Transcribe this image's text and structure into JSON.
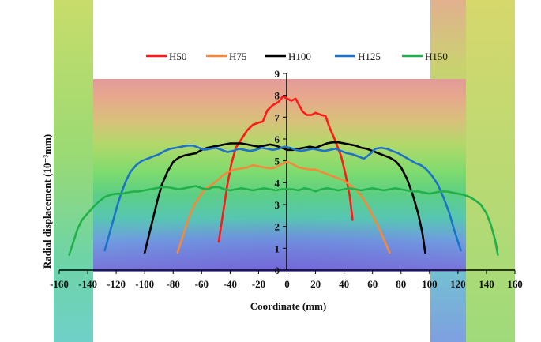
{
  "chart_data": {
    "type": "line",
    "title": "",
    "xlabel": "Coordinate  (mm)",
    "ylabel": "Radial displacement  (10⁻³mm)",
    "xlim": [
      -160,
      160
    ],
    "ylim": [
      0,
      9
    ],
    "x_ticks": [
      -160,
      -140,
      -120,
      -100,
      -80,
      -60,
      -40,
      -20,
      0,
      20,
      40,
      60,
      80,
      100,
      120,
      140,
      160
    ],
    "y_ticks": [
      0,
      1,
      2,
      3,
      4,
      5,
      6,
      7,
      8,
      9
    ],
    "legend_position": "top-center",
    "series": [
      {
        "name": "H50",
        "color": "#ff1a1a",
        "points": [
          [
            -48,
            1.3
          ],
          [
            -45,
            2.6
          ],
          [
            -42,
            3.9
          ],
          [
            -39,
            4.9
          ],
          [
            -36,
            5.6
          ],
          [
            -32,
            6.0
          ],
          [
            -28,
            6.4
          ],
          [
            -24,
            6.65
          ],
          [
            -20,
            6.75
          ],
          [
            -17,
            6.8
          ],
          [
            -14,
            7.3
          ],
          [
            -10,
            7.55
          ],
          [
            -6,
            7.7
          ],
          [
            -3,
            7.95
          ],
          [
            0,
            7.85
          ],
          [
            3,
            7.75
          ],
          [
            6,
            7.85
          ],
          [
            8,
            7.6
          ],
          [
            11,
            7.25
          ],
          [
            14,
            7.1
          ],
          [
            17,
            7.1
          ],
          [
            20,
            7.2
          ],
          [
            24,
            7.1
          ],
          [
            27,
            7.05
          ],
          [
            30,
            6.5
          ],
          [
            34,
            5.9
          ],
          [
            38,
            5.2
          ],
          [
            41,
            4.4
          ],
          [
            44,
            3.4
          ],
          [
            46,
            2.3
          ]
        ]
      },
      {
        "name": "H75",
        "color": "#f4893c",
        "points": [
          [
            -77,
            0.8
          ],
          [
            -73,
            1.6
          ],
          [
            -69,
            2.4
          ],
          [
            -65,
            3.0
          ],
          [
            -61,
            3.4
          ],
          [
            -57,
            3.75
          ],
          [
            -53,
            3.9
          ],
          [
            -49,
            4.1
          ],
          [
            -45,
            4.35
          ],
          [
            -41,
            4.5
          ],
          [
            -37,
            4.6
          ],
          [
            -32,
            4.65
          ],
          [
            -28,
            4.7
          ],
          [
            -24,
            4.8
          ],
          [
            -20,
            4.75
          ],
          [
            -16,
            4.7
          ],
          [
            -12,
            4.65
          ],
          [
            -8,
            4.7
          ],
          [
            -4,
            4.85
          ],
          [
            0,
            4.95
          ],
          [
            4,
            4.85
          ],
          [
            8,
            4.7
          ],
          [
            12,
            4.65
          ],
          [
            16,
            4.6
          ],
          [
            20,
            4.6
          ],
          [
            24,
            4.5
          ],
          [
            28,
            4.4
          ],
          [
            32,
            4.3
          ],
          [
            36,
            4.2
          ],
          [
            40,
            4.1
          ],
          [
            44,
            3.9
          ],
          [
            48,
            3.7
          ],
          [
            52,
            3.4
          ],
          [
            56,
            3.0
          ],
          [
            60,
            2.5
          ],
          [
            64,
            2.0
          ],
          [
            68,
            1.4
          ],
          [
            72,
            0.8
          ]
        ]
      },
      {
        "name": "H100",
        "color": "#000000",
        "points": [
          [
            -100,
            0.8
          ],
          [
            -97,
            1.6
          ],
          [
            -94,
            2.4
          ],
          [
            -91,
            3.2
          ],
          [
            -88,
            3.9
          ],
          [
            -84,
            4.5
          ],
          [
            -80,
            4.95
          ],
          [
            -76,
            5.15
          ],
          [
            -72,
            5.25
          ],
          [
            -68,
            5.3
          ],
          [
            -64,
            5.35
          ],
          [
            -60,
            5.5
          ],
          [
            -56,
            5.6
          ],
          [
            -52,
            5.65
          ],
          [
            -48,
            5.7
          ],
          [
            -44,
            5.75
          ],
          [
            -40,
            5.8
          ],
          [
            -36,
            5.8
          ],
          [
            -32,
            5.8
          ],
          [
            -28,
            5.75
          ],
          [
            -24,
            5.7
          ],
          [
            -20,
            5.65
          ],
          [
            -16,
            5.7
          ],
          [
            -12,
            5.75
          ],
          [
            -8,
            5.7
          ],
          [
            -4,
            5.6
          ],
          [
            0,
            5.5
          ],
          [
            4,
            5.5
          ],
          [
            8,
            5.55
          ],
          [
            12,
            5.6
          ],
          [
            16,
            5.65
          ],
          [
            20,
            5.6
          ],
          [
            24,
            5.7
          ],
          [
            28,
            5.8
          ],
          [
            32,
            5.85
          ],
          [
            36,
            5.85
          ],
          [
            40,
            5.8
          ],
          [
            44,
            5.75
          ],
          [
            48,
            5.7
          ],
          [
            52,
            5.6
          ],
          [
            56,
            5.55
          ],
          [
            60,
            5.45
          ],
          [
            64,
            5.35
          ],
          [
            68,
            5.25
          ],
          [
            72,
            5.15
          ],
          [
            76,
            5.0
          ],
          [
            80,
            4.7
          ],
          [
            84,
            4.2
          ],
          [
            88,
            3.5
          ],
          [
            92,
            2.6
          ],
          [
            95,
            1.7
          ],
          [
            97,
            0.8
          ]
        ]
      },
      {
        "name": "H125",
        "color": "#1e73c8",
        "points": [
          [
            -128,
            0.9
          ],
          [
            -125,
            1.6
          ],
          [
            -122,
            2.3
          ],
          [
            -119,
            3.0
          ],
          [
            -116,
            3.6
          ],
          [
            -113,
            4.1
          ],
          [
            -110,
            4.5
          ],
          [
            -106,
            4.8
          ],
          [
            -102,
            5.0
          ],
          [
            -98,
            5.1
          ],
          [
            -94,
            5.2
          ],
          [
            -90,
            5.3
          ],
          [
            -86,
            5.45
          ],
          [
            -82,
            5.55
          ],
          [
            -78,
            5.6
          ],
          [
            -74,
            5.65
          ],
          [
            -70,
            5.7
          ],
          [
            -66,
            5.7
          ],
          [
            -62,
            5.6
          ],
          [
            -58,
            5.5
          ],
          [
            -54,
            5.55
          ],
          [
            -50,
            5.6
          ],
          [
            -46,
            5.5
          ],
          [
            -42,
            5.4
          ],
          [
            -38,
            5.45
          ],
          [
            -34,
            5.55
          ],
          [
            -30,
            5.5
          ],
          [
            -26,
            5.45
          ],
          [
            -22,
            5.5
          ],
          [
            -18,
            5.6
          ],
          [
            -14,
            5.55
          ],
          [
            -10,
            5.5
          ],
          [
            -6,
            5.55
          ],
          [
            -2,
            5.65
          ],
          [
            2,
            5.6
          ],
          [
            6,
            5.5
          ],
          [
            10,
            5.45
          ],
          [
            14,
            5.5
          ],
          [
            18,
            5.55
          ],
          [
            22,
            5.5
          ],
          [
            26,
            5.45
          ],
          [
            30,
            5.5
          ],
          [
            34,
            5.55
          ],
          [
            38,
            5.45
          ],
          [
            42,
            5.35
          ],
          [
            46,
            5.3
          ],
          [
            50,
            5.2
          ],
          [
            54,
            5.1
          ],
          [
            58,
            5.3
          ],
          [
            62,
            5.55
          ],
          [
            66,
            5.6
          ],
          [
            70,
            5.55
          ],
          [
            74,
            5.45
          ],
          [
            78,
            5.35
          ],
          [
            82,
            5.2
          ],
          [
            86,
            5.05
          ],
          [
            90,
            4.9
          ],
          [
            94,
            4.8
          ],
          [
            98,
            4.6
          ],
          [
            102,
            4.3
          ],
          [
            106,
            3.9
          ],
          [
            110,
            3.3
          ],
          [
            114,
            2.6
          ],
          [
            117,
            1.9
          ],
          [
            120,
            1.3
          ],
          [
            122,
            0.9
          ]
        ]
      },
      {
        "name": "H150",
        "color": "#22b04b",
        "points": [
          [
            -153,
            0.7
          ],
          [
            -150,
            1.3
          ],
          [
            -147,
            1.9
          ],
          [
            -144,
            2.3
          ],
          [
            -140,
            2.6
          ],
          [
            -136,
            2.9
          ],
          [
            -132,
            3.15
          ],
          [
            -128,
            3.35
          ],
          [
            -124,
            3.45
          ],
          [
            -120,
            3.5
          ],
          [
            -116,
            3.5
          ],
          [
            -112,
            3.55
          ],
          [
            -108,
            3.6
          ],
          [
            -104,
            3.6
          ],
          [
            -100,
            3.65
          ],
          [
            -96,
            3.7
          ],
          [
            -92,
            3.75
          ],
          [
            -88,
            3.8
          ],
          [
            -84,
            3.8
          ],
          [
            -80,
            3.75
          ],
          [
            -76,
            3.7
          ],
          [
            -72,
            3.75
          ],
          [
            -68,
            3.8
          ],
          [
            -64,
            3.85
          ],
          [
            -60,
            3.75
          ],
          [
            -56,
            3.7
          ],
          [
            -52,
            3.8
          ],
          [
            -48,
            3.8
          ],
          [
            -44,
            3.7
          ],
          [
            -40,
            3.65
          ],
          [
            -36,
            3.7
          ],
          [
            -32,
            3.75
          ],
          [
            -28,
            3.7
          ],
          [
            -24,
            3.65
          ],
          [
            -20,
            3.7
          ],
          [
            -16,
            3.75
          ],
          [
            -12,
            3.7
          ],
          [
            -8,
            3.65
          ],
          [
            -4,
            3.7
          ],
          [
            0,
            3.7
          ],
          [
            4,
            3.7
          ],
          [
            8,
            3.65
          ],
          [
            12,
            3.75
          ],
          [
            16,
            3.7
          ],
          [
            20,
            3.6
          ],
          [
            24,
            3.7
          ],
          [
            28,
            3.75
          ],
          [
            32,
            3.7
          ],
          [
            36,
            3.65
          ],
          [
            40,
            3.7
          ],
          [
            44,
            3.75
          ],
          [
            48,
            3.7
          ],
          [
            52,
            3.65
          ],
          [
            56,
            3.7
          ],
          [
            60,
            3.75
          ],
          [
            64,
            3.7
          ],
          [
            68,
            3.65
          ],
          [
            72,
            3.7
          ],
          [
            76,
            3.75
          ],
          [
            80,
            3.7
          ],
          [
            84,
            3.65
          ],
          [
            88,
            3.6
          ],
          [
            92,
            3.6
          ],
          [
            96,
            3.55
          ],
          [
            100,
            3.5
          ],
          [
            104,
            3.55
          ],
          [
            108,
            3.6
          ],
          [
            112,
            3.6
          ],
          [
            116,
            3.55
          ],
          [
            120,
            3.5
          ],
          [
            124,
            3.45
          ],
          [
            128,
            3.35
          ],
          [
            132,
            3.2
          ],
          [
            136,
            3.0
          ],
          [
            140,
            2.6
          ],
          [
            143,
            2.1
          ],
          [
            146,
            1.4
          ],
          [
            148,
            0.7
          ]
        ]
      }
    ]
  }
}
